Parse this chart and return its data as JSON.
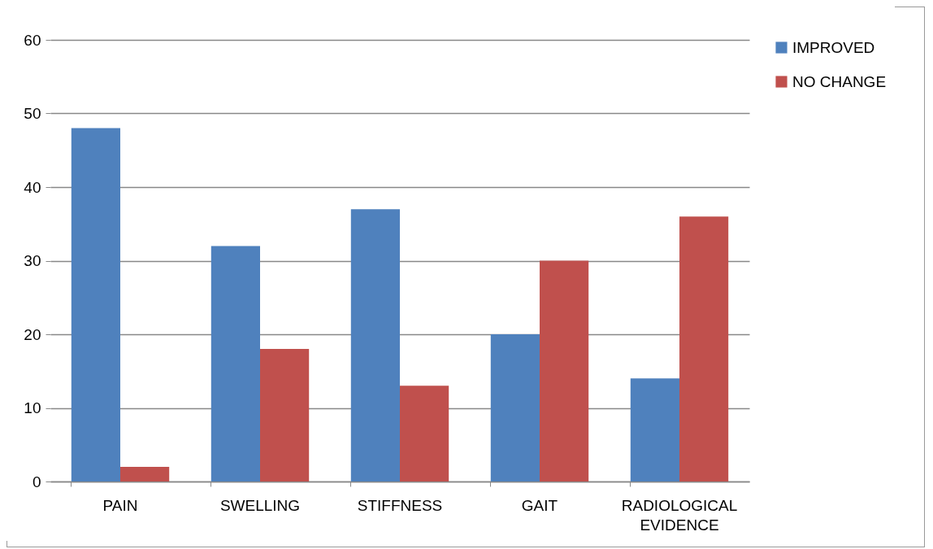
{
  "chart_data": {
    "type": "bar",
    "categories": [
      "PAIN",
      "SWELLING",
      "STIFFNESS",
      "GAIT",
      "RADIOLOGICAL EVIDENCE"
    ],
    "series": [
      {
        "name": "IMPROVED",
        "color": "#4f81bd",
        "values": [
          48,
          32,
          37,
          20,
          14
        ]
      },
      {
        "name": "NO CHANGE",
        "color": "#c0504d",
        "values": [
          2,
          18,
          13,
          30,
          36
        ]
      }
    ],
    "ylim": [
      0,
      60
    ],
    "yticks": [
      0,
      10,
      20,
      30,
      40,
      50,
      60
    ],
    "grid": "y",
    "legend": "right"
  }
}
